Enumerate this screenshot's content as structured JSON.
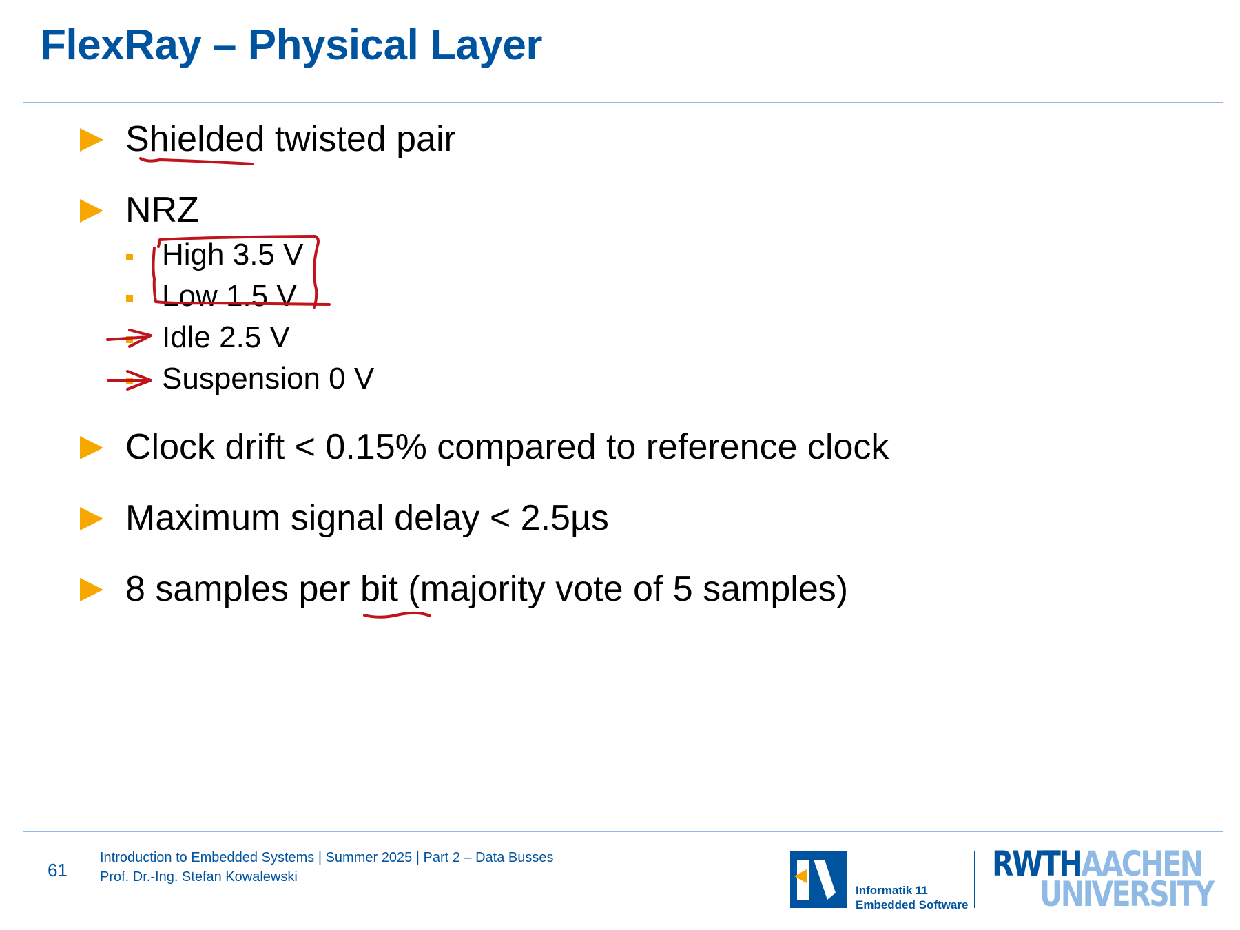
{
  "slide": {
    "title": "FlexRay – Physical Layer",
    "bullets": [
      {
        "text": "Shielded twisted pair"
      },
      {
        "text": "NRZ"
      },
      {
        "text": "Clock drift  < 0.15% compared to reference clock"
      },
      {
        "text": "Maximum signal delay  < 2.5µs"
      },
      {
        "text": "8 samples per bit (majority vote of 5 samples)"
      }
    ],
    "sub_bullets": [
      {
        "text": "High 3.5 V"
      },
      {
        "text": "Low 1.5 V"
      },
      {
        "text": "Idle 2.5 V"
      },
      {
        "text": "Suspension 0 V"
      }
    ]
  },
  "footer": {
    "page_number": "61",
    "course_line": "Introduction to Embedded Systems | Summer 2025 | Part 2 – Data Busses",
    "author_line": "Prof. Dr.-Ing. Stefan Kowalewski",
    "i11_line1": "Informatik 11",
    "i11_line2": "Embedded Software",
    "rwth_part1": "RWTH",
    "rwth_part2": "AACHEN",
    "rwth_part3": "UNIVERSITY"
  },
  "colors": {
    "title": "#00549f",
    "accent": "#f6a800",
    "rule": "#8ebae5",
    "ink": "#c0141c"
  }
}
